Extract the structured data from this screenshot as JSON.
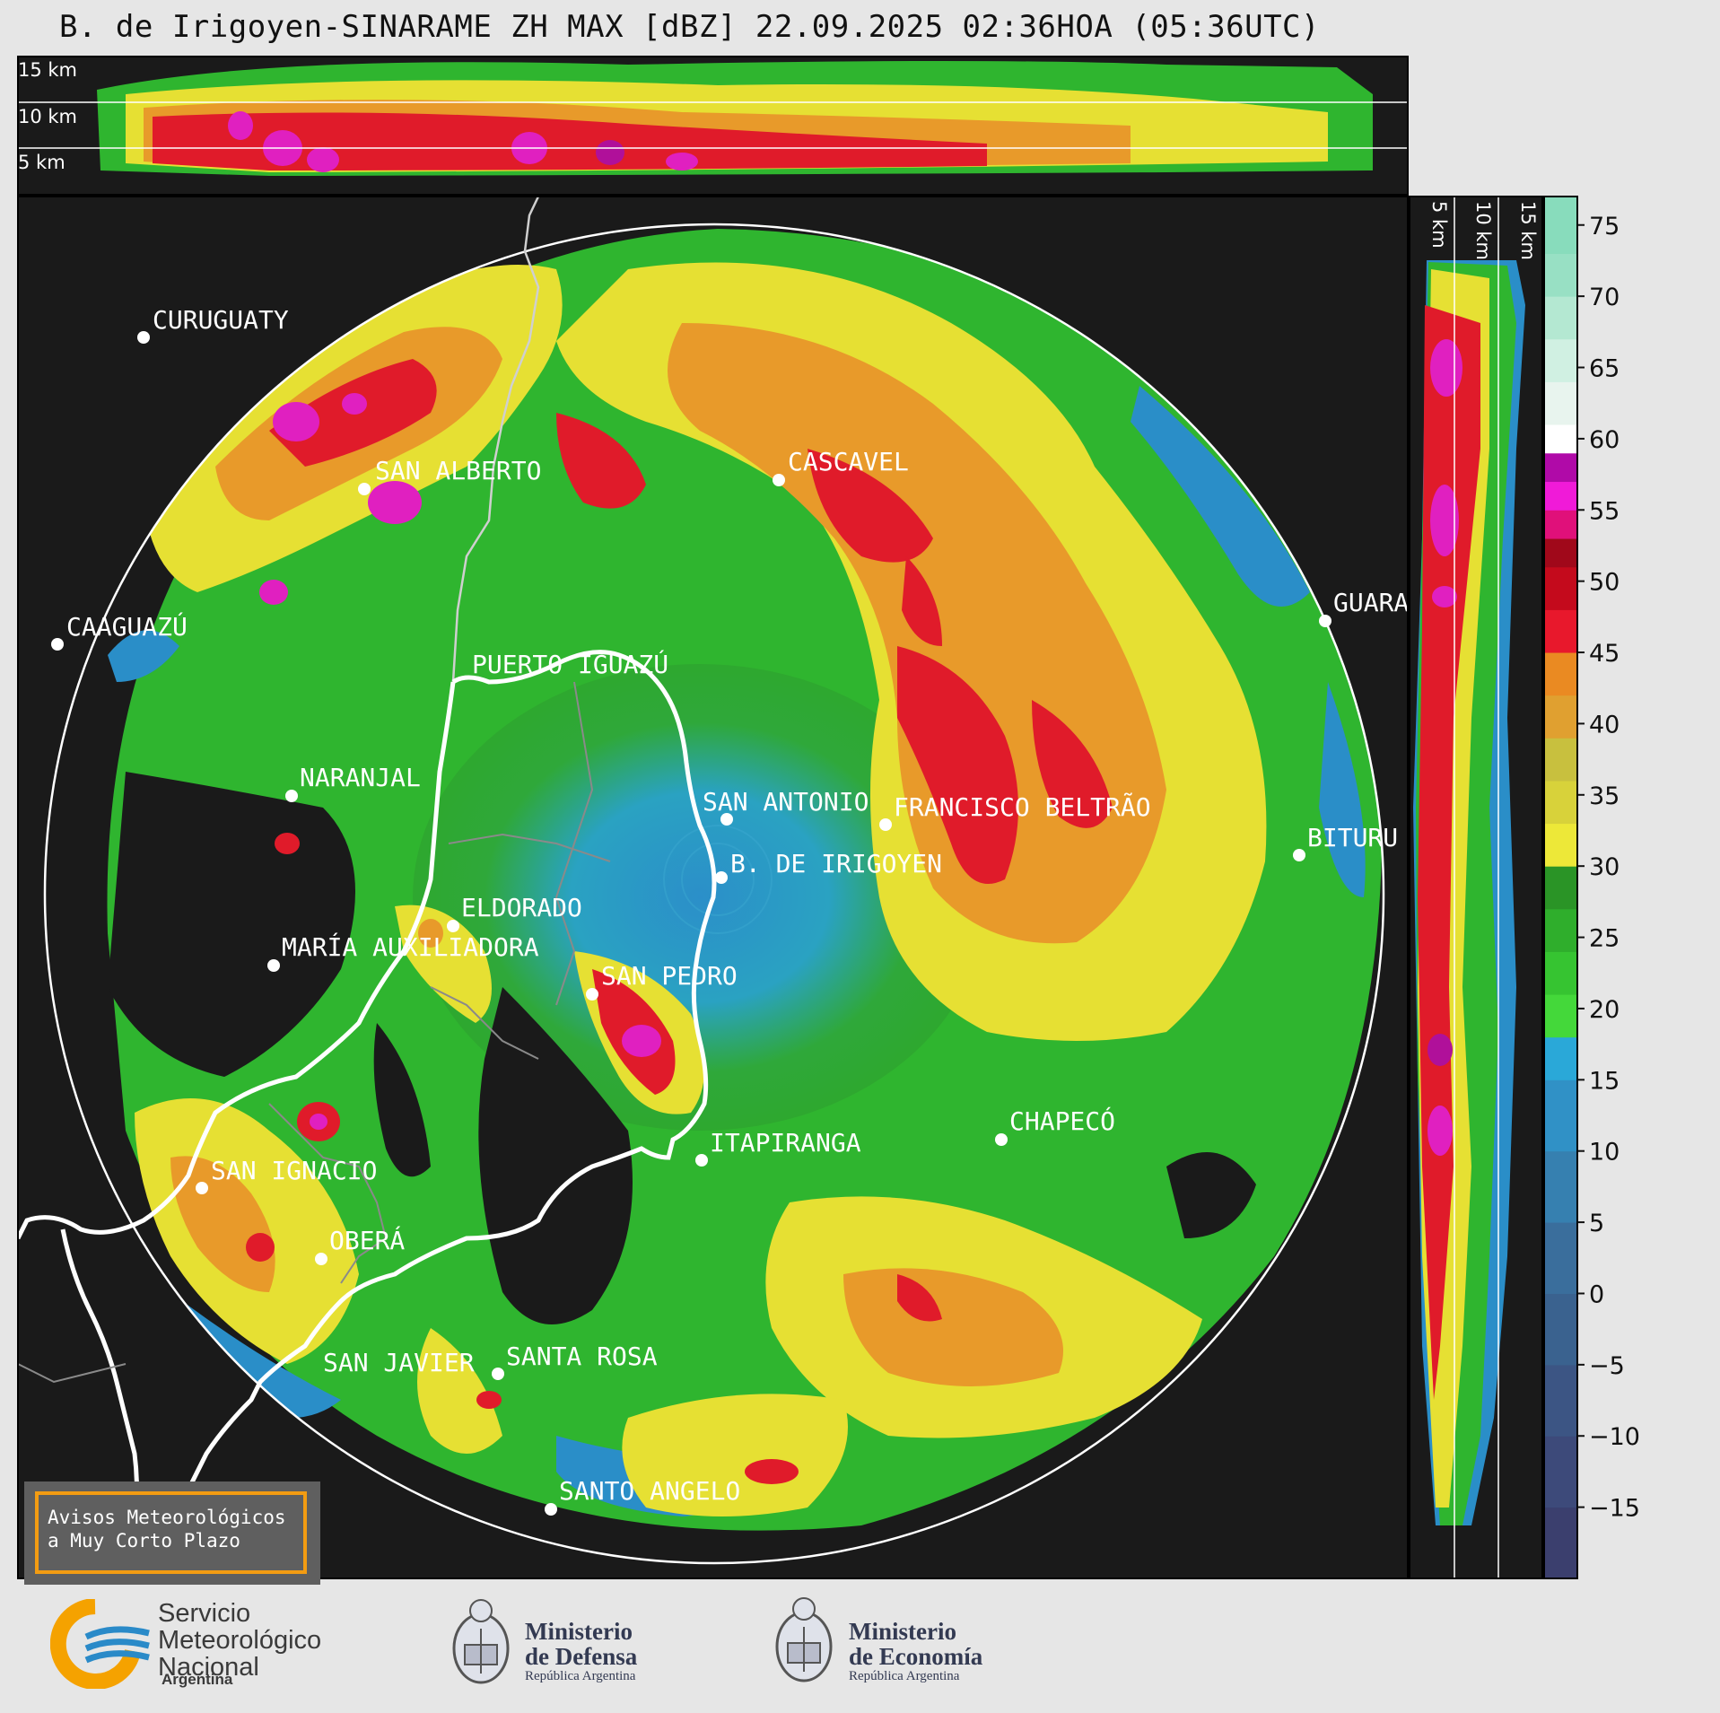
{
  "title": "B. de Irigoyen-SINARAME ZH MAX [dBZ] 22.09.2025 02:36HOA (05:36UTC)",
  "top_panel": {
    "km_labels": [
      "15 km",
      "10 km",
      "5 km"
    ]
  },
  "side_panel": {
    "km_labels": [
      "5 km",
      "10 km",
      "15 km"
    ]
  },
  "colorbar": {
    "ticks": [
      "75",
      "70",
      "65",
      "60",
      "55",
      "50",
      "45",
      "40",
      "35",
      "30",
      "25",
      "20",
      "15",
      "10",
      "5",
      "0",
      "−5",
      "−10",
      "−15"
    ],
    "range": [
      -20,
      77
    ]
  },
  "cities": [
    {
      "name": "CURUGUATY"
    },
    {
      "name": "SAN ALBERTO"
    },
    {
      "name": "CASCAVEL"
    },
    {
      "name": "CAAGUAZÚ"
    },
    {
      "name": "GUARA"
    },
    {
      "name": "PUERTO IGUAZÚ"
    },
    {
      "name": "NARANJAL"
    },
    {
      "name": "SAN ANTONIO"
    },
    {
      "name": "FRANCISCO BELTRÃO"
    },
    {
      "name": "BITURU"
    },
    {
      "name": "B. DE IRIGOYEN"
    },
    {
      "name": "ELDORADO"
    },
    {
      "name": "MARÍA AUXILIADORA"
    },
    {
      "name": "SAN PEDRO"
    },
    {
      "name": "ITAPIRANGA"
    },
    {
      "name": "CHAPECÓ"
    },
    {
      "name": "SAN IGNACIO"
    },
    {
      "name": "OBERÁ"
    },
    {
      "name": "SAN JAVIER"
    },
    {
      "name": "SANTA ROSA"
    },
    {
      "name": "SANTO ANGELO"
    }
  ],
  "warning_box": {
    "line1": "Avisos Meteorológicos",
    "line2": "a Muy Corto Plazo"
  },
  "logos": {
    "smn": {
      "line1": "Servicio",
      "line2": "Meteorológico",
      "line3": "Nacional",
      "sub": "Argentina"
    },
    "defensa": {
      "line1": "Ministerio",
      "line2": "de Defensa",
      "sub": "República Argentina"
    },
    "economia": {
      "line1": "Ministerio",
      "line2": "de Economía",
      "sub": "República Argentina"
    }
  },
  "colors": {
    "green": "#2fb52f",
    "yellow": "#e6e033",
    "orange": "#e89a2a",
    "red": "#e01b2a",
    "magenta": "#e020c0",
    "blue": "#2a8ec8",
    "panel_bg": "#1a1a1a"
  }
}
